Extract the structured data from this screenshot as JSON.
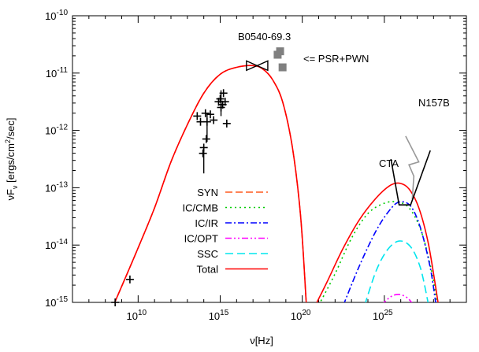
{
  "chart_data": {
    "type": "line",
    "xlabel_base": "ν[Hz]",
    "ylabel_main": "νF",
    "ylabel_sub": "ν",
    "ylabel_unit": " [ergs/cm",
    "ylabel_sup": "2",
    "ylabel_end": "/sec]",
    "x_scale": "log",
    "y_scale": "log",
    "xlim": [
      1000000.0,
      1e+30
    ],
    "ylim": [
      1e-15,
      1e-10
    ],
    "x_ticks": [
      {
        "exp": 10,
        "label": "10",
        "sup": "10"
      },
      {
        "exp": 15,
        "label": "10",
        "sup": "15"
      },
      {
        "exp": 20,
        "label": "10",
        "sup": "20"
      },
      {
        "exp": 25,
        "label": "10",
        "sup": "25"
      }
    ],
    "y_ticks": [
      {
        "exp": -15,
        "label": "10",
        "sup": "-15"
      },
      {
        "exp": -14,
        "label": "10",
        "sup": "-14"
      },
      {
        "exp": -13,
        "label": "10",
        "sup": "-13"
      },
      {
        "exp": -12,
        "label": "10",
        "sup": "-12"
      },
      {
        "exp": -11,
        "label": "10",
        "sup": "-11"
      },
      {
        "exp": -10,
        "label": "10",
        "sup": "-10"
      }
    ],
    "legend_position": "left-center",
    "annotations": {
      "source": "B0540-69.3",
      "psr_label": "<= PSR+PWN",
      "n157b": "N157B",
      "cta": "CTA"
    },
    "series": [
      {
        "name": "SYN",
        "color": "#ff5a1f",
        "dash": "9,4",
        "points": [
          [
            8.5,
            -15.05
          ],
          [
            10,
            -14.05
          ],
          [
            11,
            -13.35
          ],
          [
            12,
            -12.55
          ],
          [
            13,
            -11.9
          ],
          [
            14,
            -11.35
          ],
          [
            15,
            -11.02
          ],
          [
            16,
            -10.9
          ],
          [
            17,
            -10.87
          ],
          [
            17.6,
            -10.93
          ],
          [
            18.2,
            -11.12
          ],
          [
            18.8,
            -11.5
          ],
          [
            19.4,
            -12.3
          ],
          [
            19.9,
            -13.5
          ],
          [
            20.25,
            -15.05
          ]
        ]
      },
      {
        "name": "IC/CMB",
        "color": "#00cc00",
        "dash": "2,4",
        "points": [
          [
            21.0,
            -15.05
          ],
          [
            22,
            -14.5
          ],
          [
            23,
            -13.88
          ],
          [
            24,
            -13.45
          ],
          [
            25,
            -13.27
          ],
          [
            25.8,
            -13.25
          ],
          [
            26.5,
            -13.35
          ],
          [
            27.2,
            -13.72
          ],
          [
            27.8,
            -14.35
          ],
          [
            28.25,
            -15.05
          ]
        ]
      },
      {
        "name": "IC/IR",
        "color": "#0000ff",
        "dash": "8,3,2,3",
        "points": [
          [
            22.5,
            -15.05
          ],
          [
            23.5,
            -14.35
          ],
          [
            24.5,
            -13.75
          ],
          [
            25.3,
            -13.4
          ],
          [
            25.9,
            -13.25
          ],
          [
            26.6,
            -13.32
          ],
          [
            27.2,
            -13.7
          ],
          [
            27.8,
            -14.4
          ],
          [
            28.15,
            -15.05
          ]
        ]
      },
      {
        "name": "IC/OPT",
        "color": "#ff00ff",
        "dash": "8,3,2,3,2,3",
        "points": [
          [
            24.8,
            -15.05
          ],
          [
            25.4,
            -14.9
          ],
          [
            25.9,
            -14.86
          ],
          [
            26.4,
            -14.92
          ],
          [
            26.8,
            -15.05
          ]
        ]
      },
      {
        "name": "SSC",
        "color": "#00e5ee",
        "dash": "10,5",
        "points": [
          [
            23.8,
            -15.05
          ],
          [
            24.5,
            -14.45
          ],
          [
            25.2,
            -14.08
          ],
          [
            25.9,
            -13.93
          ],
          [
            26.6,
            -14.03
          ],
          [
            27.2,
            -14.4
          ],
          [
            27.7,
            -15.05
          ]
        ]
      },
      {
        "name": "Total",
        "color": "#ff0000",
        "dash": "",
        "points": [
          [
            8.5,
            -15.05
          ],
          [
            10,
            -14.05
          ],
          [
            11,
            -13.35
          ],
          [
            12,
            -12.55
          ],
          [
            13,
            -11.9
          ],
          [
            14,
            -11.35
          ],
          [
            15,
            -11.02
          ],
          [
            16,
            -10.9
          ],
          [
            17,
            -10.87
          ],
          [
            17.6,
            -10.93
          ],
          [
            18.2,
            -11.12
          ],
          [
            18.8,
            -11.5
          ],
          [
            19.4,
            -12.3
          ],
          [
            19.9,
            -13.5
          ],
          [
            20.25,
            -15.05
          ]
        ],
        "points2": [
          [
            20.8,
            -15.05
          ],
          [
            21.5,
            -14.65
          ],
          [
            22.5,
            -14.05
          ],
          [
            23.5,
            -13.55
          ],
          [
            24.5,
            -13.18
          ],
          [
            25.3,
            -12.97
          ],
          [
            25.9,
            -12.92
          ],
          [
            26.5,
            -13.02
          ],
          [
            27.1,
            -13.35
          ],
          [
            27.7,
            -14.0
          ],
          [
            28.3,
            -15.05
          ]
        ]
      }
    ],
    "data_points": [
      {
        "x": 9.5,
        "y": -14.6
      },
      {
        "x": 8.6,
        "y": -15.0
      },
      {
        "x": 13.6,
        "y": -11.75
      },
      {
        "x": 13.8,
        "y": -11.85
      },
      {
        "x": 14.1,
        "y": -11.7
      },
      {
        "x": 14.2,
        "y": -11.85
      },
      {
        "x": 14.4,
        "y": -11.72
      },
      {
        "x": 14.6,
        "y": -11.82
      },
      {
        "x": 14.0,
        "y": -12.3
      },
      {
        "x": 13.95,
        "y": -12.4
      },
      {
        "x": 14.15,
        "y": -12.15
      },
      {
        "x": 14.9,
        "y": -11.5
      },
      {
        "x": 15.0,
        "y": -11.45
      },
      {
        "x": 15.15,
        "y": -11.55
      },
      {
        "x": 15.3,
        "y": -11.5
      },
      {
        "x": 15.2,
        "y": -11.35
      },
      {
        "x": 15.05,
        "y": -11.6
      },
      {
        "x": 15.4,
        "y": -11.88
      }
    ],
    "bowtie": {
      "x1": 16.6,
      "x2": 17.9,
      "y": -10.87
    },
    "psr_pwn_squares": [
      {
        "x": 18.5,
        "y": -10.68
      },
      {
        "x": 18.65,
        "y": -10.62
      },
      {
        "x": 18.8,
        "y": -10.9
      }
    ],
    "n157b_curve": [
      [
        26.3,
        -12.1
      ],
      [
        27.1,
        -12.55
      ],
      [
        26.5,
        -12.6
      ],
      [
        26.8,
        -12.8
      ],
      [
        26.7,
        -13.2
      ]
    ],
    "cta_curve": [
      [
        25.4,
        -12.5
      ],
      [
        25.9,
        -13.3
      ],
      [
        26.6,
        -13.3
      ],
      [
        27.8,
        -12.35
      ]
    ]
  }
}
